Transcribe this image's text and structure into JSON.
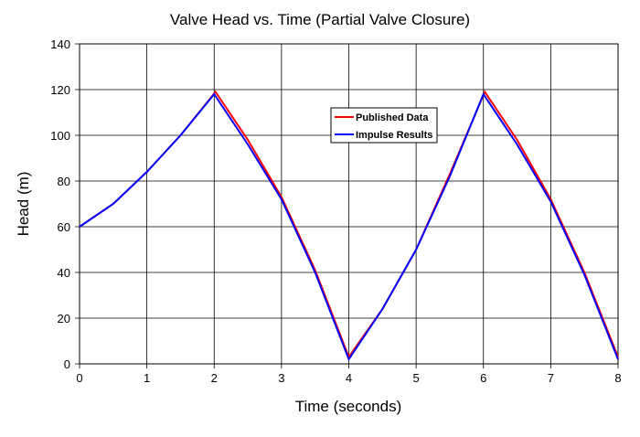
{
  "chart_data": {
    "type": "line",
    "title": "Valve Head vs. Time (Partial Valve Closure)",
    "xlabel": "Time (seconds)",
    "ylabel": "Head (m)",
    "xlim": [
      0,
      8
    ],
    "ylim": [
      0,
      140
    ],
    "xticks": [
      0,
      1,
      2,
      3,
      4,
      5,
      6,
      7,
      8
    ],
    "yticks": [
      0,
      20,
      40,
      60,
      80,
      100,
      120,
      140
    ],
    "grid": true,
    "legend_placement": "upper-center",
    "series": [
      {
        "name": "Published Data",
        "color": "#ff0000",
        "x": [
          0,
          0.5,
          1,
          1.5,
          2.02,
          2.5,
          3,
          3.5,
          4.0,
          4.5,
          5,
          5.5,
          6.02,
          6.5,
          7,
          7.5,
          8
        ],
        "y": [
          60,
          70,
          84,
          100,
          119,
          98,
          73,
          41,
          3,
          24,
          50,
          83,
          119,
          98,
          72,
          40,
          3
        ]
      },
      {
        "name": "Impulse Results",
        "color": "#0000ff",
        "x": [
          0,
          0.5,
          1,
          1.5,
          2.0,
          2.5,
          3,
          3.5,
          4.0,
          4.5,
          5,
          5.5,
          6.0,
          6.5,
          7,
          7.5,
          8
        ],
        "y": [
          60,
          70,
          84,
          100,
          118,
          96,
          72,
          40,
          2,
          24,
          50,
          82,
          118,
          96,
          71,
          39,
          2
        ]
      }
    ]
  }
}
